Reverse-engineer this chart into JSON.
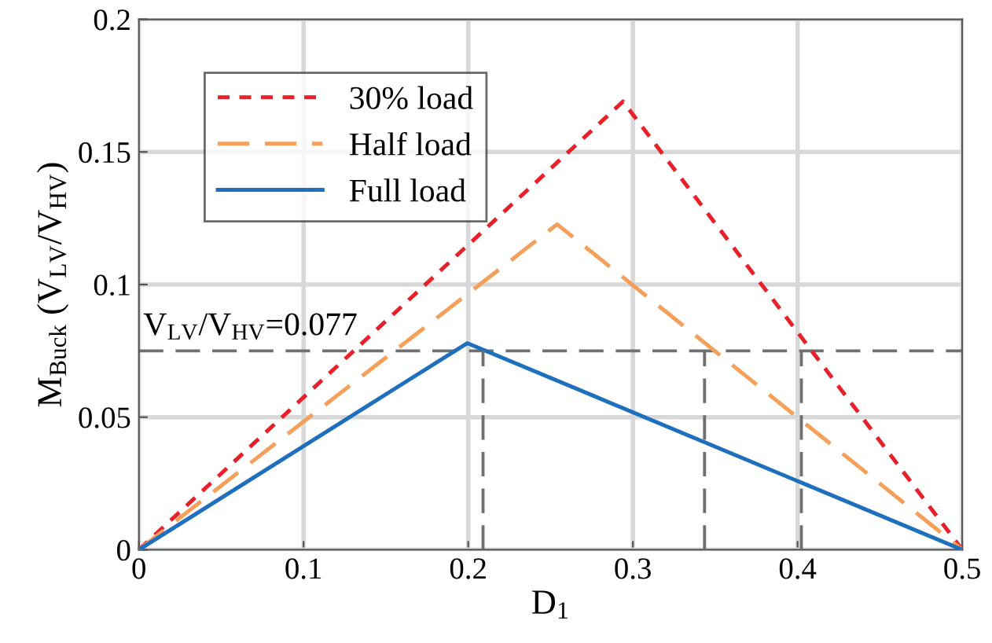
{
  "chart_data": {
    "type": "line",
    "xlabel": "D$_{1}$",
    "ylabel": "M$_{Buck}$ (V$_{LV}$/V$_{HV}$)",
    "xlim": [
      0,
      0.5
    ],
    "xticks": [
      0,
      0.1,
      0.2,
      0.3,
      0.4,
      0.5
    ],
    "ylim": [
      0,
      0.2
    ],
    "yticks": [
      0,
      0.05,
      0.1,
      0.15,
      0.2
    ],
    "grid": true,
    "legend": "top left",
    "series": [
      {
        "name": "30% load",
        "color": "#e8202a",
        "line_style": "dotted",
        "x": [
          0,
          0.294,
          0.5
        ],
        "values": [
          0,
          0.169,
          0
        ]
      },
      {
        "name": "Half load",
        "color": "#f5a05a",
        "line_style": "dashed",
        "x": [
          0,
          0.254,
          0.5
        ],
        "values": [
          0,
          0.1227,
          0
        ]
      },
      {
        "name": "Full load",
        "color": "#1f6fbf",
        "line_style": "solid",
        "x": [
          0,
          0.1994,
          0.5
        ],
        "values": [
          0,
          0.0779,
          0
        ]
      },
      {
        "color": "#707070",
        "line_style": "dashed",
        "x": [
          0.209,
          0.209
        ],
        "values": [
          0,
          0.075
        ]
      },
      {
        "color": "#707070",
        "line_style": "dashed",
        "x": [
          0.3435,
          0.3435
        ],
        "values": [
          0,
          0.075
        ]
      },
      {
        "color": "#707070",
        "line_style": "dashed",
        "x": [
          0.4023,
          0.4023
        ],
        "values": [
          0,
          0.075
        ]
      }
    ],
    "ref_lines": [
      {
        "axis": "y",
        "value": 0.075,
        "color": "#707070",
        "line_style": "dashed"
      }
    ],
    "annotations": [
      {
        "text": "V$_{LV}$/V$_{HV}$=0.077",
        "x": 0,
        "y": 0.075
      }
    ]
  }
}
